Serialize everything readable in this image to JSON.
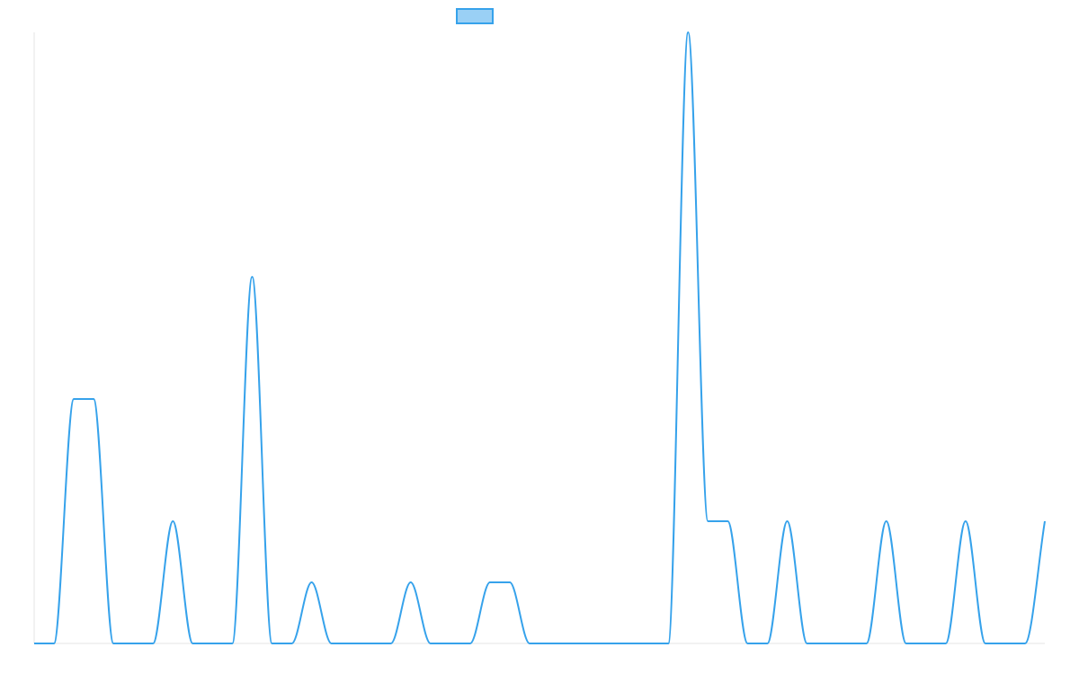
{
  "chart_data": {
    "type": "line",
    "title": "",
    "xlabel": "",
    "ylabel": "",
    "legend": {
      "position": "top-center",
      "entries": [
        {
          "label": "",
          "color": "#36A2EB",
          "fill": "#9AD0F5"
        }
      ]
    },
    "grid": false,
    "x": [
      0,
      1,
      2,
      3,
      4,
      5,
      6,
      7,
      8,
      9,
      10,
      11,
      12,
      13,
      14,
      15,
      16,
      17,
      18,
      19,
      20,
      21,
      22,
      23,
      24,
      25,
      26,
      27,
      28,
      29,
      30,
      31,
      32,
      33,
      34,
      35,
      36,
      37,
      38,
      39,
      40,
      41,
      42,
      43,
      44,
      45,
      46,
      47,
      48,
      49,
      50,
      51
    ],
    "series": [
      {
        "name": "",
        "color": "#36A2EB",
        "values": [
          0,
          0,
          4,
          4,
          0,
          0,
          0,
          2,
          0,
          0,
          0,
          6,
          0,
          0,
          1,
          0,
          0,
          0,
          0,
          1,
          0,
          0,
          0,
          1,
          1,
          0,
          0,
          0,
          0,
          0,
          0,
          0,
          0,
          10,
          2,
          2,
          0,
          0,
          2,
          0,
          0,
          0,
          0,
          2,
          0,
          0,
          0,
          2,
          0,
          0,
          0,
          2
        ]
      }
    ],
    "xlim": [
      0,
      51
    ],
    "ylim": [
      0,
      10
    ]
  }
}
